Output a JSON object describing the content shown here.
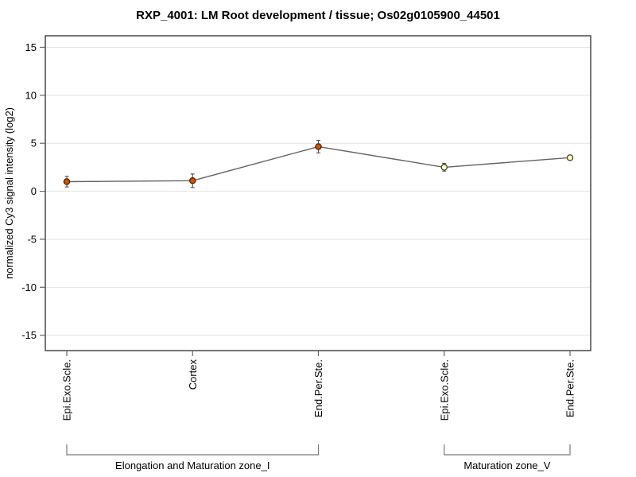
{
  "chart_data": {
    "type": "line",
    "title": "RXP_4001: LM Root development / tissue; Os02g0105900_44501",
    "ylabel": "normalized Cy3 signal intensity (log2)",
    "xlabel": "",
    "ylim": [
      -16.6,
      16.2
    ],
    "yticks": [
      15,
      10,
      5,
      0,
      -5,
      -10,
      -15
    ],
    "grid": true,
    "legend": "none",
    "categories": [
      "Epi.Exo.Scle.",
      "Cortex",
      "End.Per.Ste.",
      "Epi.Exo.Scle.",
      "End.Per.Ste."
    ],
    "series": [
      {
        "name": "normalized Cy3 signal intensity (log2)",
        "values": [
          1.0,
          1.1,
          4.65,
          2.5,
          3.5
        ],
        "errors": [
          0.55,
          0.7,
          0.65,
          0.4,
          0.15
        ],
        "point_fills": [
          "#d35400",
          "#d35400",
          "#d35400",
          "#ffffcc",
          "#ffffcc"
        ],
        "point_strokes": [
          "#4a2000",
          "#4a2000",
          "#4a2000",
          "#45451f",
          "#45451f"
        ]
      }
    ],
    "groups": [
      {
        "label": "Elongation and Maturation zone_I",
        "from": 0,
        "to": 2
      },
      {
        "label": "Maturation zone_V",
        "from": 3,
        "to": 4
      }
    ],
    "colors": {
      "background": "#ffffff",
      "plot_border": "#2b2b2b",
      "gridline": "#e2e2e2",
      "tick": "#666666",
      "line": "#636363",
      "error_bar": "#4d4d4d",
      "bracket": "#7a7a7a",
      "text": "#000000"
    }
  }
}
